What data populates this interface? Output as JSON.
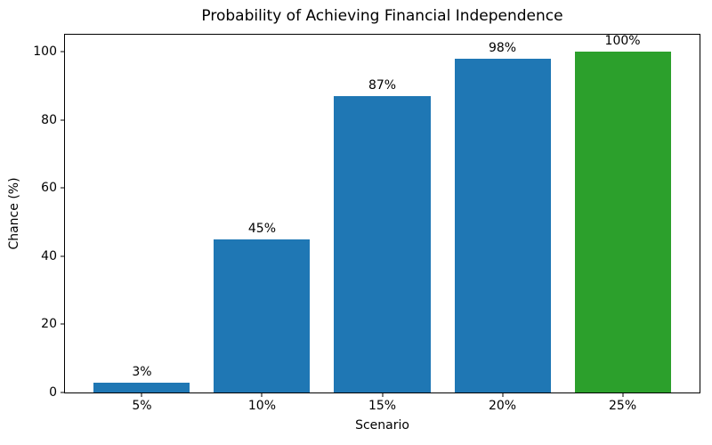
{
  "chart_data": {
    "type": "bar",
    "title": "Probability of Achieving Financial Independence",
    "xlabel": "Scenario",
    "ylabel": "Chance (%)",
    "categories": [
      "5%",
      "10%",
      "15%",
      "20%",
      "25%"
    ],
    "values": [
      3,
      45,
      87,
      98,
      100
    ],
    "bar_labels": [
      "3%",
      "45%",
      "87%",
      "98%",
      "100%"
    ],
    "bar_colors": [
      "#1f77b4",
      "#1f77b4",
      "#1f77b4",
      "#1f77b4",
      "#2ca02c"
    ],
    "ylim": [
      0,
      105
    ],
    "yticks": [
      0,
      20,
      40,
      60,
      80,
      100
    ],
    "grid": false,
    "legend": null,
    "colors": {
      "bar_blue": "#1f77b4",
      "bar_green": "#2ca02c",
      "spine": "#000000",
      "text": "#000000",
      "background": "#ffffff"
    }
  }
}
